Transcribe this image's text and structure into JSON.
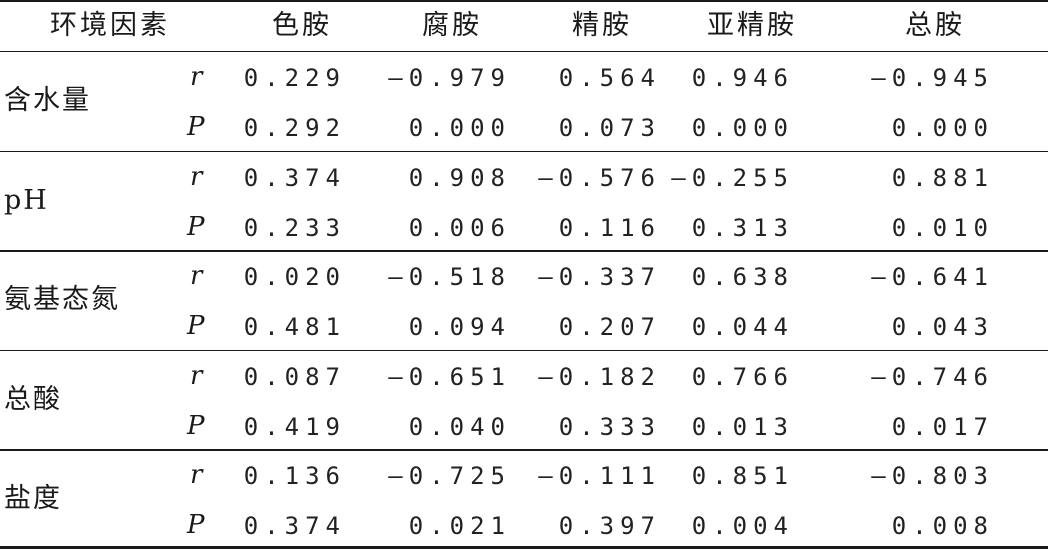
{
  "header": {
    "factor": "环境因素",
    "cols": [
      "色胺",
      "腐胺",
      "精胺",
      "亚精胺",
      "总胺"
    ]
  },
  "groups": [
    {
      "factor": "含水量",
      "r": [
        "0.229",
        "—0.979",
        "0.564",
        "0.946",
        "—0.945"
      ],
      "p": [
        "0.292",
        "0.000",
        "0.073",
        "0.000",
        "0.000"
      ]
    },
    {
      "factor": "pH",
      "r": [
        "0.374",
        "0.908",
        "—0.576",
        "—0.255",
        "0.881"
      ],
      "p": [
        "0.233",
        "0.006",
        "0.116",
        "0.313",
        "0.010"
      ]
    },
    {
      "factor": "氨基态氮",
      "r": [
        "0.020",
        "—0.518",
        "—0.337",
        "0.638",
        "—0.641"
      ],
      "p": [
        "0.481",
        "0.094",
        "0.207",
        "0.044",
        "0.043"
      ]
    },
    {
      "factor": "总酸",
      "r": [
        "0.087",
        "—0.651",
        "—0.182",
        "0.766",
        "—0.746"
      ],
      "p": [
        "0.419",
        "0.040",
        "0.333",
        "0.013",
        "0.017"
      ]
    },
    {
      "factor": "盐度",
      "r": [
        "0.136",
        "—0.725",
        "—0.111",
        "0.851",
        "—0.803"
      ],
      "p": [
        "0.374",
        "0.021",
        "0.397",
        "0.004",
        "0.008"
      ]
    }
  ],
  "stat_labels": {
    "r": "r",
    "p": "P"
  }
}
